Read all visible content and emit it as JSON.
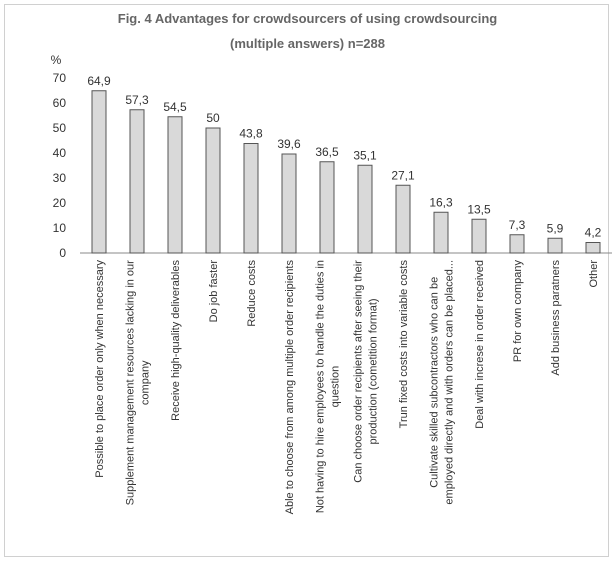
{
  "chart_data": {
    "type": "bar",
    "title": "Fig. 4  Advantages for crowdsourcers of using crowdsourcing",
    "subtitle": "(multiple answers)   n=288",
    "ylabel": "%",
    "ylim": [
      0,
      70
    ],
    "yticks": [
      0,
      10,
      20,
      30,
      40,
      50,
      60,
      70
    ],
    "grid": false,
    "bar_color": "#d9d9d9",
    "bar_edge_color": "#555555",
    "categories": [
      [
        "Possible to place order only when necessary"
      ],
      [
        "Supplement management resources lacking in our",
        "company"
      ],
      [
        "Receive high-quality deliverables"
      ],
      [
        "Do job faster"
      ],
      [
        "Reduce costs"
      ],
      [
        "Able to choose from among multiple order recipients"
      ],
      [
        "Not having to hire employees to handle the duties in",
        "question"
      ],
      [
        "Can choose order recipients after seeing their",
        "production (cometition format)"
      ],
      [
        "Trun fixed costs into  variable costs"
      ],
      [
        "Cultivate skilled subcontractors who can be",
        "employed directly and with orders can be placed..."
      ],
      [
        "Deal with increse in order received"
      ],
      [
        "PR for own company"
      ],
      [
        "Add business paratners"
      ],
      [
        "Other"
      ]
    ],
    "values": [
      64.9,
      57.3,
      54.5,
      50,
      43.8,
      39.6,
      36.5,
      35.1,
      27.1,
      16.3,
      13.5,
      7.3,
      5.9,
      4.2
    ],
    "value_labels": [
      "64,9",
      "57,3",
      "54,5",
      "50",
      "43,8",
      "39,6",
      "36,5",
      "35,1",
      "27,1",
      "16,3",
      "13,5",
      "7,3",
      "5,9",
      "4,2"
    ]
  }
}
